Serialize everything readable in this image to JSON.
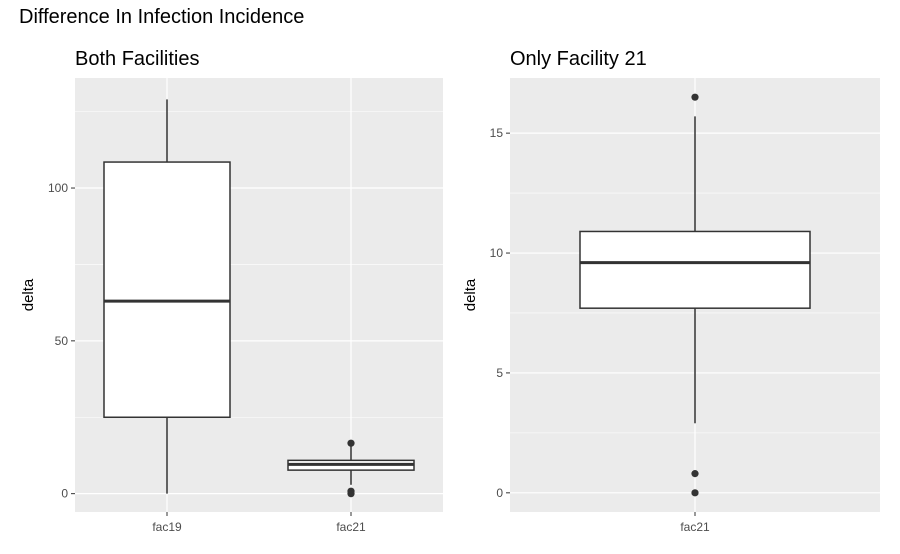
{
  "page_title": "Difference In Infection Incidence",
  "chart_data": [
    {
      "type": "boxplot",
      "title": "Both Facilities",
      "xlabel": "",
      "ylabel": "delta",
      "categories": [
        "fac19",
        "fac21"
      ],
      "ylim": [
        -6,
        136
      ],
      "yticks": [
        0,
        50,
        100
      ],
      "grid": true,
      "boxes": [
        {
          "category": "fac19",
          "min": 0,
          "q1": 25,
          "median": 63,
          "q3": 108.5,
          "max": 129,
          "outliers": []
        },
        {
          "category": "fac21",
          "min": 2.9,
          "q1": 7.7,
          "median": 9.6,
          "q3": 10.9,
          "max": 15.7,
          "outliers": [
            16.5,
            0.8,
            0
          ]
        }
      ]
    },
    {
      "type": "boxplot",
      "title": "Only Facility 21",
      "xlabel": "",
      "ylabel": "delta",
      "categories": [
        "fac21"
      ],
      "ylim": [
        -0.8,
        17.3
      ],
      "yticks": [
        0,
        5,
        10,
        15
      ],
      "grid": true,
      "boxes": [
        {
          "category": "fac21",
          "min": 2.9,
          "q1": 7.7,
          "median": 9.6,
          "q3": 10.9,
          "max": 15.7,
          "outliers": [
            16.5,
            0.8,
            0
          ]
        }
      ]
    }
  ]
}
